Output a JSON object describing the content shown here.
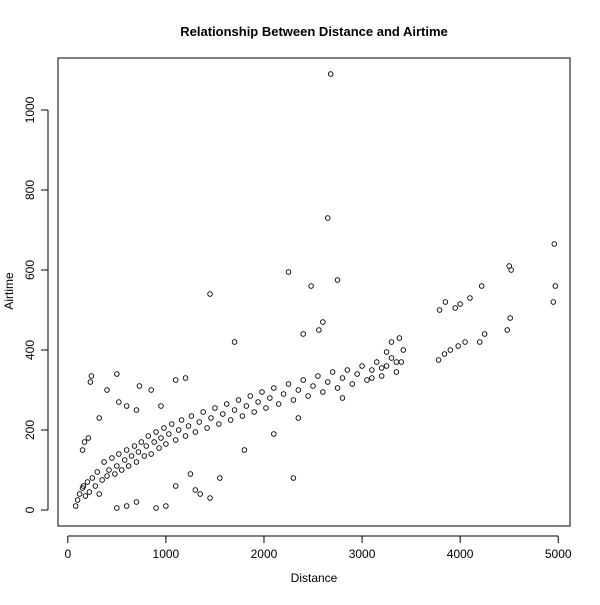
{
  "chart_data": {
    "type": "scatter",
    "title": "Relationship Between Distance and Airtime",
    "xlabel": "Distance",
    "ylabel": "Airtime",
    "xlim": [
      -100,
      5120
    ],
    "ylim": [
      -40,
      1130
    ],
    "xticks": [
      0,
      1000,
      2000,
      3000,
      4000,
      5000
    ],
    "yticks": [
      0,
      200,
      400,
      600,
      800,
      1000
    ],
    "grid": false,
    "legend": "none",
    "marker": "open-circle",
    "point_color": "#000000",
    "series": [
      {
        "points": [
          [
            80,
            10
          ],
          [
            100,
            25
          ],
          [
            120,
            40
          ],
          [
            150,
            55
          ],
          [
            160,
            60
          ],
          [
            180,
            35
          ],
          [
            200,
            70
          ],
          [
            220,
            45
          ],
          [
            250,
            80
          ],
          [
            280,
            60
          ],
          [
            300,
            95
          ],
          [
            320,
            40
          ],
          [
            350,
            75
          ],
          [
            370,
            120
          ],
          [
            400,
            85
          ],
          [
            420,
            100
          ],
          [
            450,
            130
          ],
          [
            480,
            90
          ],
          [
            500,
            110
          ],
          [
            520,
            140
          ],
          [
            550,
            100
          ],
          [
            580,
            125
          ],
          [
            600,
            150
          ],
          [
            620,
            110
          ],
          [
            650,
            135
          ],
          [
            680,
            160
          ],
          [
            700,
            120
          ],
          [
            720,
            145
          ],
          [
            750,
            170
          ],
          [
            780,
            135
          ],
          [
            800,
            160
          ],
          [
            820,
            185
          ],
          [
            850,
            140
          ],
          [
            880,
            170
          ],
          [
            900,
            195
          ],
          [
            930,
            155
          ],
          [
            950,
            180
          ],
          [
            980,
            205
          ],
          [
            1000,
            165
          ],
          [
            1030,
            190
          ],
          [
            1060,
            215
          ],
          [
            1100,
            175
          ],
          [
            1130,
            200
          ],
          [
            1160,
            225
          ],
          [
            1200,
            185
          ],
          [
            1230,
            210
          ],
          [
            1260,
            235
          ],
          [
            1300,
            195
          ],
          [
            1340,
            220
          ],
          [
            1380,
            245
          ],
          [
            1420,
            205
          ],
          [
            1460,
            230
          ],
          [
            1500,
            255
          ],
          [
            1540,
            215
          ],
          [
            1580,
            240
          ],
          [
            1620,
            265
          ],
          [
            1660,
            225
          ],
          [
            1700,
            250
          ],
          [
            1740,
            275
          ],
          [
            1780,
            235
          ],
          [
            1820,
            260
          ],
          [
            1860,
            285
          ],
          [
            1900,
            245
          ],
          [
            1940,
            270
          ],
          [
            1980,
            295
          ],
          [
            2020,
            255
          ],
          [
            2060,
            280
          ],
          [
            2100,
            305
          ],
          [
            2150,
            265
          ],
          [
            2200,
            290
          ],
          [
            2250,
            315
          ],
          [
            2300,
            275
          ],
          [
            2350,
            300
          ],
          [
            2400,
            325
          ],
          [
            2450,
            285
          ],
          [
            2500,
            310
          ],
          [
            2550,
            335
          ],
          [
            2600,
            295
          ],
          [
            2650,
            320
          ],
          [
            2700,
            345
          ],
          [
            2750,
            305
          ],
          [
            2800,
            330
          ],
          [
            2850,
            350
          ],
          [
            2900,
            315
          ],
          [
            2950,
            340
          ],
          [
            3000,
            360
          ],
          [
            3050,
            325
          ],
          [
            3100,
            350
          ],
          [
            3150,
            370
          ],
          [
            3200,
            335
          ],
          [
            3250,
            360
          ],
          [
            3300,
            380
          ],
          [
            3350,
            345
          ],
          [
            3400,
            370
          ],
          [
            3420,
            400
          ],
          [
            3380,
            430
          ],
          [
            3300,
            420
          ],
          [
            3250,
            395
          ],
          [
            3200,
            355
          ],
          [
            150,
            150
          ],
          [
            170,
            170
          ],
          [
            210,
            180
          ],
          [
            230,
            320
          ],
          [
            240,
            335
          ],
          [
            320,
            230
          ],
          [
            400,
            300
          ],
          [
            500,
            340
          ],
          [
            520,
            270
          ],
          [
            600,
            260
          ],
          [
            700,
            250
          ],
          [
            730,
            310
          ],
          [
            850,
            300
          ],
          [
            950,
            260
          ],
          [
            1100,
            325
          ],
          [
            1200,
            330
          ],
          [
            1450,
            540
          ],
          [
            1700,
            420
          ],
          [
            2250,
            595
          ],
          [
            2300,
            80
          ],
          [
            2480,
            560
          ],
          [
            2650,
            730
          ],
          [
            2680,
            1090
          ],
          [
            2750,
            575
          ],
          [
            2560,
            450
          ],
          [
            2600,
            470
          ],
          [
            2400,
            440
          ],
          [
            1450,
            30
          ],
          [
            1350,
            40
          ],
          [
            1300,
            50
          ],
          [
            700,
            20
          ],
          [
            600,
            10
          ],
          [
            500,
            5
          ],
          [
            900,
            5
          ],
          [
            1000,
            10
          ],
          [
            1100,
            60
          ],
          [
            1250,
            90
          ],
          [
            1550,
            80
          ],
          [
            1800,
            150
          ],
          [
            2100,
            190
          ],
          [
            2350,
            230
          ],
          [
            2800,
            280
          ],
          [
            3100,
            330
          ],
          [
            3350,
            370
          ],
          [
            3780,
            375
          ],
          [
            3790,
            500
          ],
          [
            3840,
            390
          ],
          [
            3850,
            520
          ],
          [
            3900,
            400
          ],
          [
            3950,
            505
          ],
          [
            3980,
            410
          ],
          [
            4000,
            515
          ],
          [
            4050,
            420
          ],
          [
            4100,
            530
          ],
          [
            4200,
            420
          ],
          [
            4220,
            560
          ],
          [
            4250,
            440
          ],
          [
            4480,
            450
          ],
          [
            4500,
            610
          ],
          [
            4510,
            480
          ],
          [
            4520,
            600
          ],
          [
            4950,
            520
          ],
          [
            4960,
            665
          ],
          [
            4970,
            560
          ]
        ]
      }
    ]
  }
}
